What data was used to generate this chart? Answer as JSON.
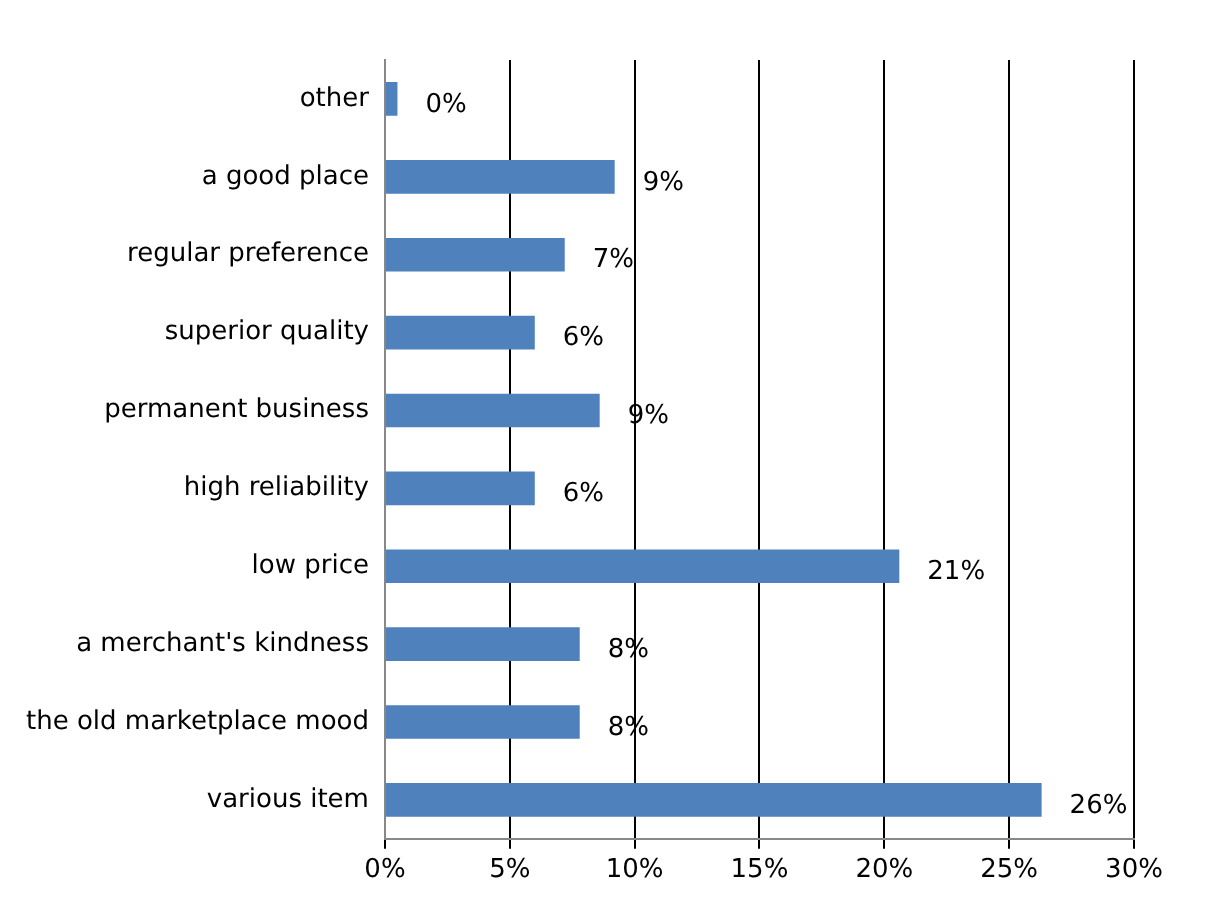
{
  "chart_data": {
    "type": "bar",
    "orientation": "horizontal",
    "categories": [
      "other",
      "a good place",
      "regular preference",
      "superior quality",
      "permanent business",
      "high reliability",
      "low price",
      "a merchant's kindness",
      "the old marketplace mood",
      "various item"
    ],
    "values": [
      0.5,
      9.2,
      7.2,
      6.0,
      8.6,
      6.0,
      20.6,
      7.8,
      7.8,
      26.3
    ],
    "value_labels": [
      "0%",
      "9%",
      "7%",
      "6%",
      "9%",
      "6%",
      "21%",
      "8%",
      "8%",
      "26%"
    ],
    "color": "#4f81bd",
    "xlim": [
      0,
      30
    ],
    "xticks": [
      {
        "value": 0,
        "label": "0%"
      },
      {
        "value": 5,
        "label": "5%"
      },
      {
        "value": 10,
        "label": "10%"
      },
      {
        "value": 15,
        "label": "15%"
      },
      {
        "value": 20,
        "label": "20%"
      },
      {
        "value": 25,
        "label": "25%"
      },
      {
        "value": 30,
        "label": "30%"
      }
    ],
    "grid": "x"
  }
}
